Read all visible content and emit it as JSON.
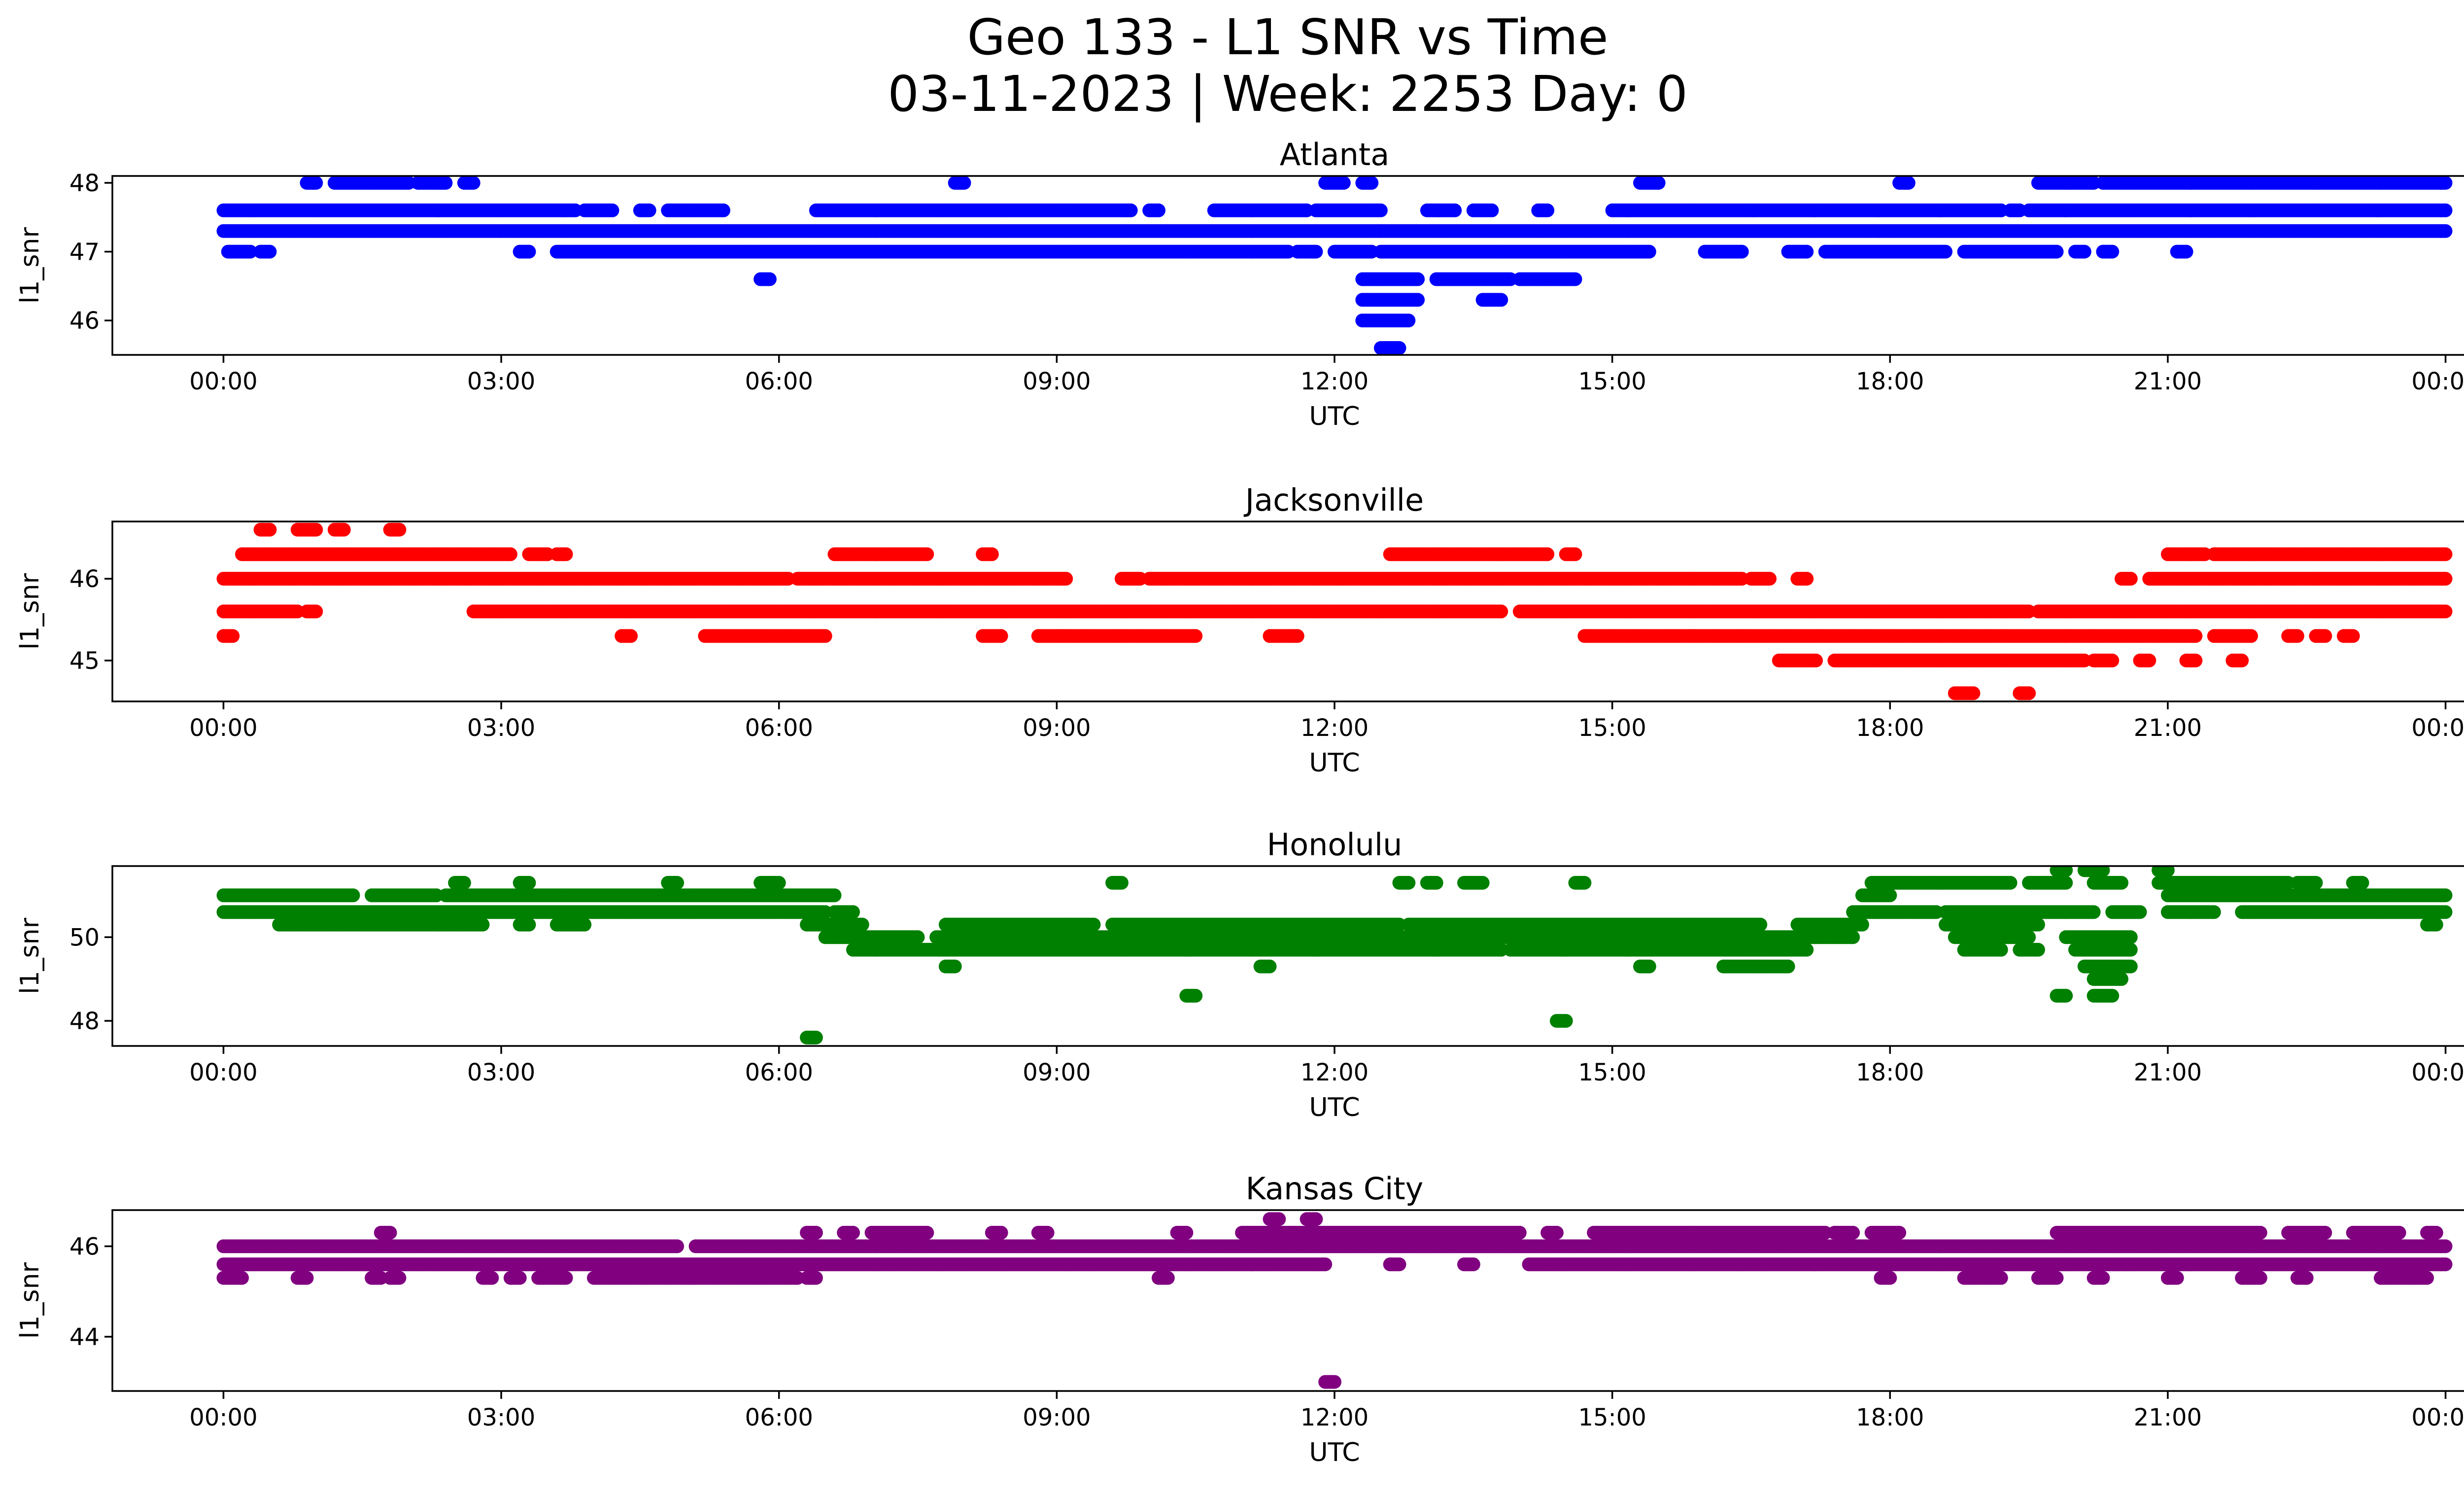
{
  "title_line1": "Geo 133 - L1 SNR vs Time",
  "title_line2": "03-11-2023 | Week: 2253 Day: 0",
  "chart_data": [
    {
      "type": "scatter",
      "title": "Atlanta",
      "xlabel": "UTC",
      "ylabel": "l1_snr",
      "color": "#0000ff",
      "x_ticks": [
        "00:00",
        "03:00",
        "06:00",
        "09:00",
        "12:00",
        "15:00",
        "18:00",
        "21:00",
        "00:00"
      ],
      "y_ticks": [
        46,
        47,
        48
      ],
      "xlim_hours": [
        -1.2,
        25.2
      ],
      "ylim": [
        45.5,
        48.1
      ],
      "bands": [
        {
          "y": 47.6,
          "segments": [
            [
              0.0,
              3.8
            ],
            [
              3.9,
              4.2
            ],
            [
              4.5,
              4.6
            ],
            [
              4.8,
              5.4
            ],
            [
              6.4,
              9.8
            ],
            [
              10.0,
              10.1
            ],
            [
              10.7,
              11.7
            ],
            [
              11.8,
              12.5
            ],
            [
              13.0,
              13.3
            ],
            [
              13.5,
              13.7
            ],
            [
              14.2,
              14.3
            ],
            [
              15.0,
              19.2
            ],
            [
              19.3,
              19.4
            ],
            [
              19.5,
              24.0
            ]
          ]
        },
        {
          "y": 47.3,
          "segments": [
            [
              0.0,
              12.5
            ],
            [
              12.5,
              24.0
            ]
          ]
        },
        {
          "y": 47.0,
          "segments": [
            [
              0.05,
              0.3
            ],
            [
              0.4,
              0.5
            ],
            [
              3.2,
              3.3
            ],
            [
              3.6,
              11.5
            ],
            [
              11.6,
              11.8
            ],
            [
              12.0,
              12.4
            ],
            [
              12.5,
              15.4
            ],
            [
              16.0,
              16.4
            ],
            [
              16.9,
              17.1
            ],
            [
              17.3,
              18.6
            ],
            [
              18.8,
              19.8
            ],
            [
              20.0,
              20.1
            ],
            [
              20.3,
              20.4
            ],
            [
              21.1,
              21.2
            ]
          ]
        },
        {
          "y": 46.6,
          "segments": [
            [
              5.8,
              5.9
            ],
            [
              12.3,
              12.9
            ],
            [
              13.1,
              13.9
            ],
            [
              14.0,
              14.6
            ]
          ]
        },
        {
          "y": 46.3,
          "segments": [
            [
              12.3,
              12.9
            ],
            [
              13.6,
              13.8
            ]
          ]
        },
        {
          "y": 46.0,
          "segments": [
            [
              12.3,
              12.8
            ]
          ]
        },
        {
          "y": 45.6,
          "segments": [
            [
              12.5,
              12.7
            ]
          ]
        },
        {
          "y": 48.0,
          "segments": [
            [
              0.9,
              1.0
            ],
            [
              1.2,
              2.0
            ],
            [
              2.1,
              2.4
            ],
            [
              2.6,
              2.7
            ],
            [
              7.9,
              8.0
            ],
            [
              11.9,
              12.1
            ],
            [
              12.3,
              12.4
            ],
            [
              15.3,
              15.5
            ],
            [
              18.1,
              18.2
            ],
            [
              19.6,
              20.2
            ],
            [
              20.3,
              24.0
            ]
          ]
        }
      ]
    },
    {
      "type": "scatter",
      "title": "Jacksonville",
      "xlabel": "UTC",
      "ylabel": "l1_snr",
      "color": "#ff0000",
      "x_ticks": [
        "00:00",
        "03:00",
        "06:00",
        "09:00",
        "12:00",
        "15:00",
        "18:00",
        "21:00",
        "00:00"
      ],
      "y_ticks": [
        45,
        46
      ],
      "xlim_hours": [
        -1.2,
        25.2
      ],
      "ylim": [
        44.5,
        46.7
      ],
      "bands": [
        {
          "y": 46.6,
          "segments": [
            [
              0.4,
              0.5
            ],
            [
              0.8,
              1.0
            ],
            [
              1.2,
              1.3
            ],
            [
              1.8,
              1.9
            ]
          ]
        },
        {
          "y": 46.3,
          "segments": [
            [
              0.2,
              3.1
            ],
            [
              3.3,
              3.5
            ],
            [
              3.6,
              3.7
            ],
            [
              6.6,
              7.6
            ],
            [
              8.2,
              8.3
            ],
            [
              12.6,
              14.3
            ],
            [
              14.5,
              14.6
            ],
            [
              21.0,
              21.4
            ],
            [
              21.5,
              24.0
            ]
          ]
        },
        {
          "y": 46.0,
          "segments": [
            [
              0.0,
              6.1
            ],
            [
              6.2,
              9.1
            ],
            [
              9.7,
              9.9
            ],
            [
              10.0,
              16.4
            ],
            [
              16.5,
              16.7
            ],
            [
              17.0,
              17.1
            ],
            [
              20.5,
              20.6
            ],
            [
              20.8,
              24.0
            ]
          ]
        },
        {
          "y": 45.6,
          "segments": [
            [
              0.0,
              0.8
            ],
            [
              0.9,
              1.0
            ],
            [
              2.7,
              13.8
            ],
            [
              14.0,
              19.5
            ],
            [
              19.6,
              24.0
            ]
          ]
        },
        {
          "y": 45.3,
          "segments": [
            [
              0.0,
              0.1
            ],
            [
              4.3,
              4.4
            ],
            [
              5.2,
              6.5
            ],
            [
              8.2,
              8.4
            ],
            [
              8.8,
              10.5
            ],
            [
              11.3,
              11.6
            ],
            [
              14.7,
              21.3
            ],
            [
              21.5,
              21.9
            ],
            [
              22.3,
              22.4
            ],
            [
              22.6,
              22.7
            ],
            [
              22.9,
              23.0
            ]
          ]
        },
        {
          "y": 45.0,
          "segments": [
            [
              16.8,
              17.2
            ],
            [
              17.4,
              20.1
            ],
            [
              20.2,
              20.4
            ],
            [
              20.7,
              20.8
            ],
            [
              21.2,
              21.3
            ],
            [
              21.7,
              21.8
            ]
          ]
        },
        {
          "y": 44.6,
          "segments": [
            [
              18.7,
              18.9
            ],
            [
              19.4,
              19.5
            ]
          ]
        }
      ]
    },
    {
      "type": "scatter",
      "title": "Honolulu",
      "xlabel": "UTC",
      "ylabel": "l1_snr",
      "color": "#008000",
      "x_ticks": [
        "00:00",
        "03:00",
        "06:00",
        "09:00",
        "12:00",
        "15:00",
        "18:00",
        "21:00",
        "00:00"
      ],
      "y_ticks": [
        48,
        50
      ],
      "xlim_hours": [
        -1.2,
        25.2
      ],
      "ylim": [
        47.4,
        51.7
      ],
      "bands": [
        {
          "y": 51.0,
          "segments": [
            [
              0.0,
              1.4
            ],
            [
              1.6,
              2.3
            ],
            [
              2.4,
              6.6
            ],
            [
              17.7,
              18.0
            ],
            [
              21.0,
              24.0
            ]
          ]
        },
        {
          "y": 50.6,
          "segments": [
            [
              0.0,
              6.5
            ],
            [
              6.6,
              6.8
            ],
            [
              17.6,
              18.5
            ],
            [
              18.6,
              20.2
            ],
            [
              20.4,
              20.7
            ],
            [
              21.0,
              21.5
            ],
            [
              21.8,
              24.0
            ]
          ]
        },
        {
          "y": 50.3,
          "segments": [
            [
              0.6,
              2.8
            ],
            [
              3.2,
              3.3
            ],
            [
              3.6,
              3.9
            ],
            [
              6.3,
              6.9
            ],
            [
              7.8,
              9.4
            ],
            [
              9.6,
              12.7
            ],
            [
              12.8,
              16.6
            ],
            [
              17.0,
              17.7
            ],
            [
              18.6,
              19.6
            ],
            [
              23.8,
              23.9
            ]
          ]
        },
        {
          "y": 50.0,
          "segments": [
            [
              6.5,
              7.5
            ],
            [
              7.7,
              17.6
            ],
            [
              18.7,
              19.5
            ],
            [
              19.9,
              20.6
            ]
          ]
        },
        {
          "y": 49.7,
          "segments": [
            [
              6.8,
              13.8
            ],
            [
              13.9,
              17.1
            ],
            [
              18.8,
              19.2
            ],
            [
              19.4,
              19.6
            ],
            [
              20.0,
              20.6
            ]
          ]
        },
        {
          "y": 49.3,
          "segments": [
            [
              7.8,
              7.9
            ],
            [
              11.2,
              11.3
            ],
            [
              15.3,
              15.4
            ],
            [
              16.2,
              16.9
            ],
            [
              20.1,
              20.6
            ]
          ]
        },
        {
          "y": 49.0,
          "segments": [
            [
              20.2,
              20.5
            ]
          ]
        },
        {
          "y": 48.6,
          "segments": [
            [
              10.4,
              10.5
            ],
            [
              19.8,
              19.9
            ],
            [
              20.2,
              20.4
            ]
          ]
        },
        {
          "y": 48.0,
          "segments": [
            [
              14.4,
              14.5
            ]
          ]
        },
        {
          "y": 47.6,
          "segments": [
            [
              6.3,
              6.4
            ]
          ]
        },
        {
          "y": 51.3,
          "segments": [
            [
              2.5,
              2.6
            ],
            [
              3.2,
              3.3
            ],
            [
              4.8,
              4.9
            ],
            [
              5.8,
              6.0
            ],
            [
              9.6,
              9.7
            ],
            [
              12.7,
              12.8
            ],
            [
              13.0,
              13.1
            ],
            [
              13.4,
              13.6
            ],
            [
              14.6,
              14.7
            ],
            [
              17.8,
              19.3
            ],
            [
              19.5,
              19.9
            ],
            [
              20.2,
              20.5
            ],
            [
              20.9,
              22.3
            ],
            [
              22.4,
              22.6
            ],
            [
              23.0,
              23.1
            ]
          ]
        },
        {
          "y": 51.6,
          "segments": [
            [
              19.8,
              19.9
            ],
            [
              20.1,
              20.3
            ],
            [
              20.9,
              21.0
            ]
          ]
        }
      ]
    },
    {
      "type": "scatter",
      "title": "Kansas City",
      "xlabel": "UTC",
      "ylabel": "l1_snr",
      "color": "#800080",
      "x_ticks": [
        "00:00",
        "03:00",
        "06:00",
        "09:00",
        "12:00",
        "15:00",
        "18:00",
        "21:00",
        "00:00"
      ],
      "y_ticks": [
        44,
        46
      ],
      "xlim_hours": [
        -1.2,
        25.2
      ],
      "ylim": [
        42.8,
        46.8
      ],
      "bands": [
        {
          "y": 46.6,
          "segments": [
            [
              11.3,
              11.4
            ],
            [
              11.7,
              11.8
            ]
          ]
        },
        {
          "y": 46.3,
          "segments": [
            [
              1.7,
              1.8
            ],
            [
              6.3,
              6.4
            ],
            [
              6.7,
              6.8
            ],
            [
              7.0,
              7.6
            ],
            [
              8.3,
              8.4
            ],
            [
              8.8,
              8.9
            ],
            [
              10.3,
              10.4
            ],
            [
              11.0,
              14.0
            ],
            [
              14.3,
              14.4
            ],
            [
              14.8,
              17.3
            ],
            [
              17.4,
              17.6
            ],
            [
              17.8,
              18.1
            ],
            [
              19.8,
              22.0
            ],
            [
              22.3,
              22.7
            ],
            [
              23.0,
              23.5
            ],
            [
              23.8,
              23.9
            ]
          ]
        },
        {
          "y": 46.0,
          "segments": [
            [
              0.0,
              4.9
            ],
            [
              5.1,
              24.0
            ]
          ]
        },
        {
          "y": 45.6,
          "segments": [
            [
              0.0,
              11.9
            ],
            [
              12.6,
              12.7
            ],
            [
              13.4,
              13.5
            ],
            [
              14.1,
              24.0
            ]
          ]
        },
        {
          "y": 45.3,
          "segments": [
            [
              0.0,
              0.2
            ],
            [
              0.8,
              0.9
            ],
            [
              1.6,
              1.7
            ],
            [
              1.8,
              1.9
            ],
            [
              2.8,
              2.9
            ],
            [
              3.1,
              3.2
            ],
            [
              3.4,
              3.7
            ],
            [
              4.0,
              6.2
            ],
            [
              6.3,
              6.4
            ],
            [
              10.1,
              10.2
            ],
            [
              17.9,
              18.0
            ],
            [
              18.8,
              19.2
            ],
            [
              19.6,
              19.8
            ],
            [
              20.2,
              20.3
            ],
            [
              21.0,
              21.1
            ],
            [
              21.8,
              22.0
            ],
            [
              22.4,
              22.5
            ],
            [
              23.3,
              23.8
            ]
          ]
        },
        {
          "y": 43.0,
          "segments": [
            [
              11.9,
              12.0
            ]
          ]
        }
      ]
    }
  ]
}
